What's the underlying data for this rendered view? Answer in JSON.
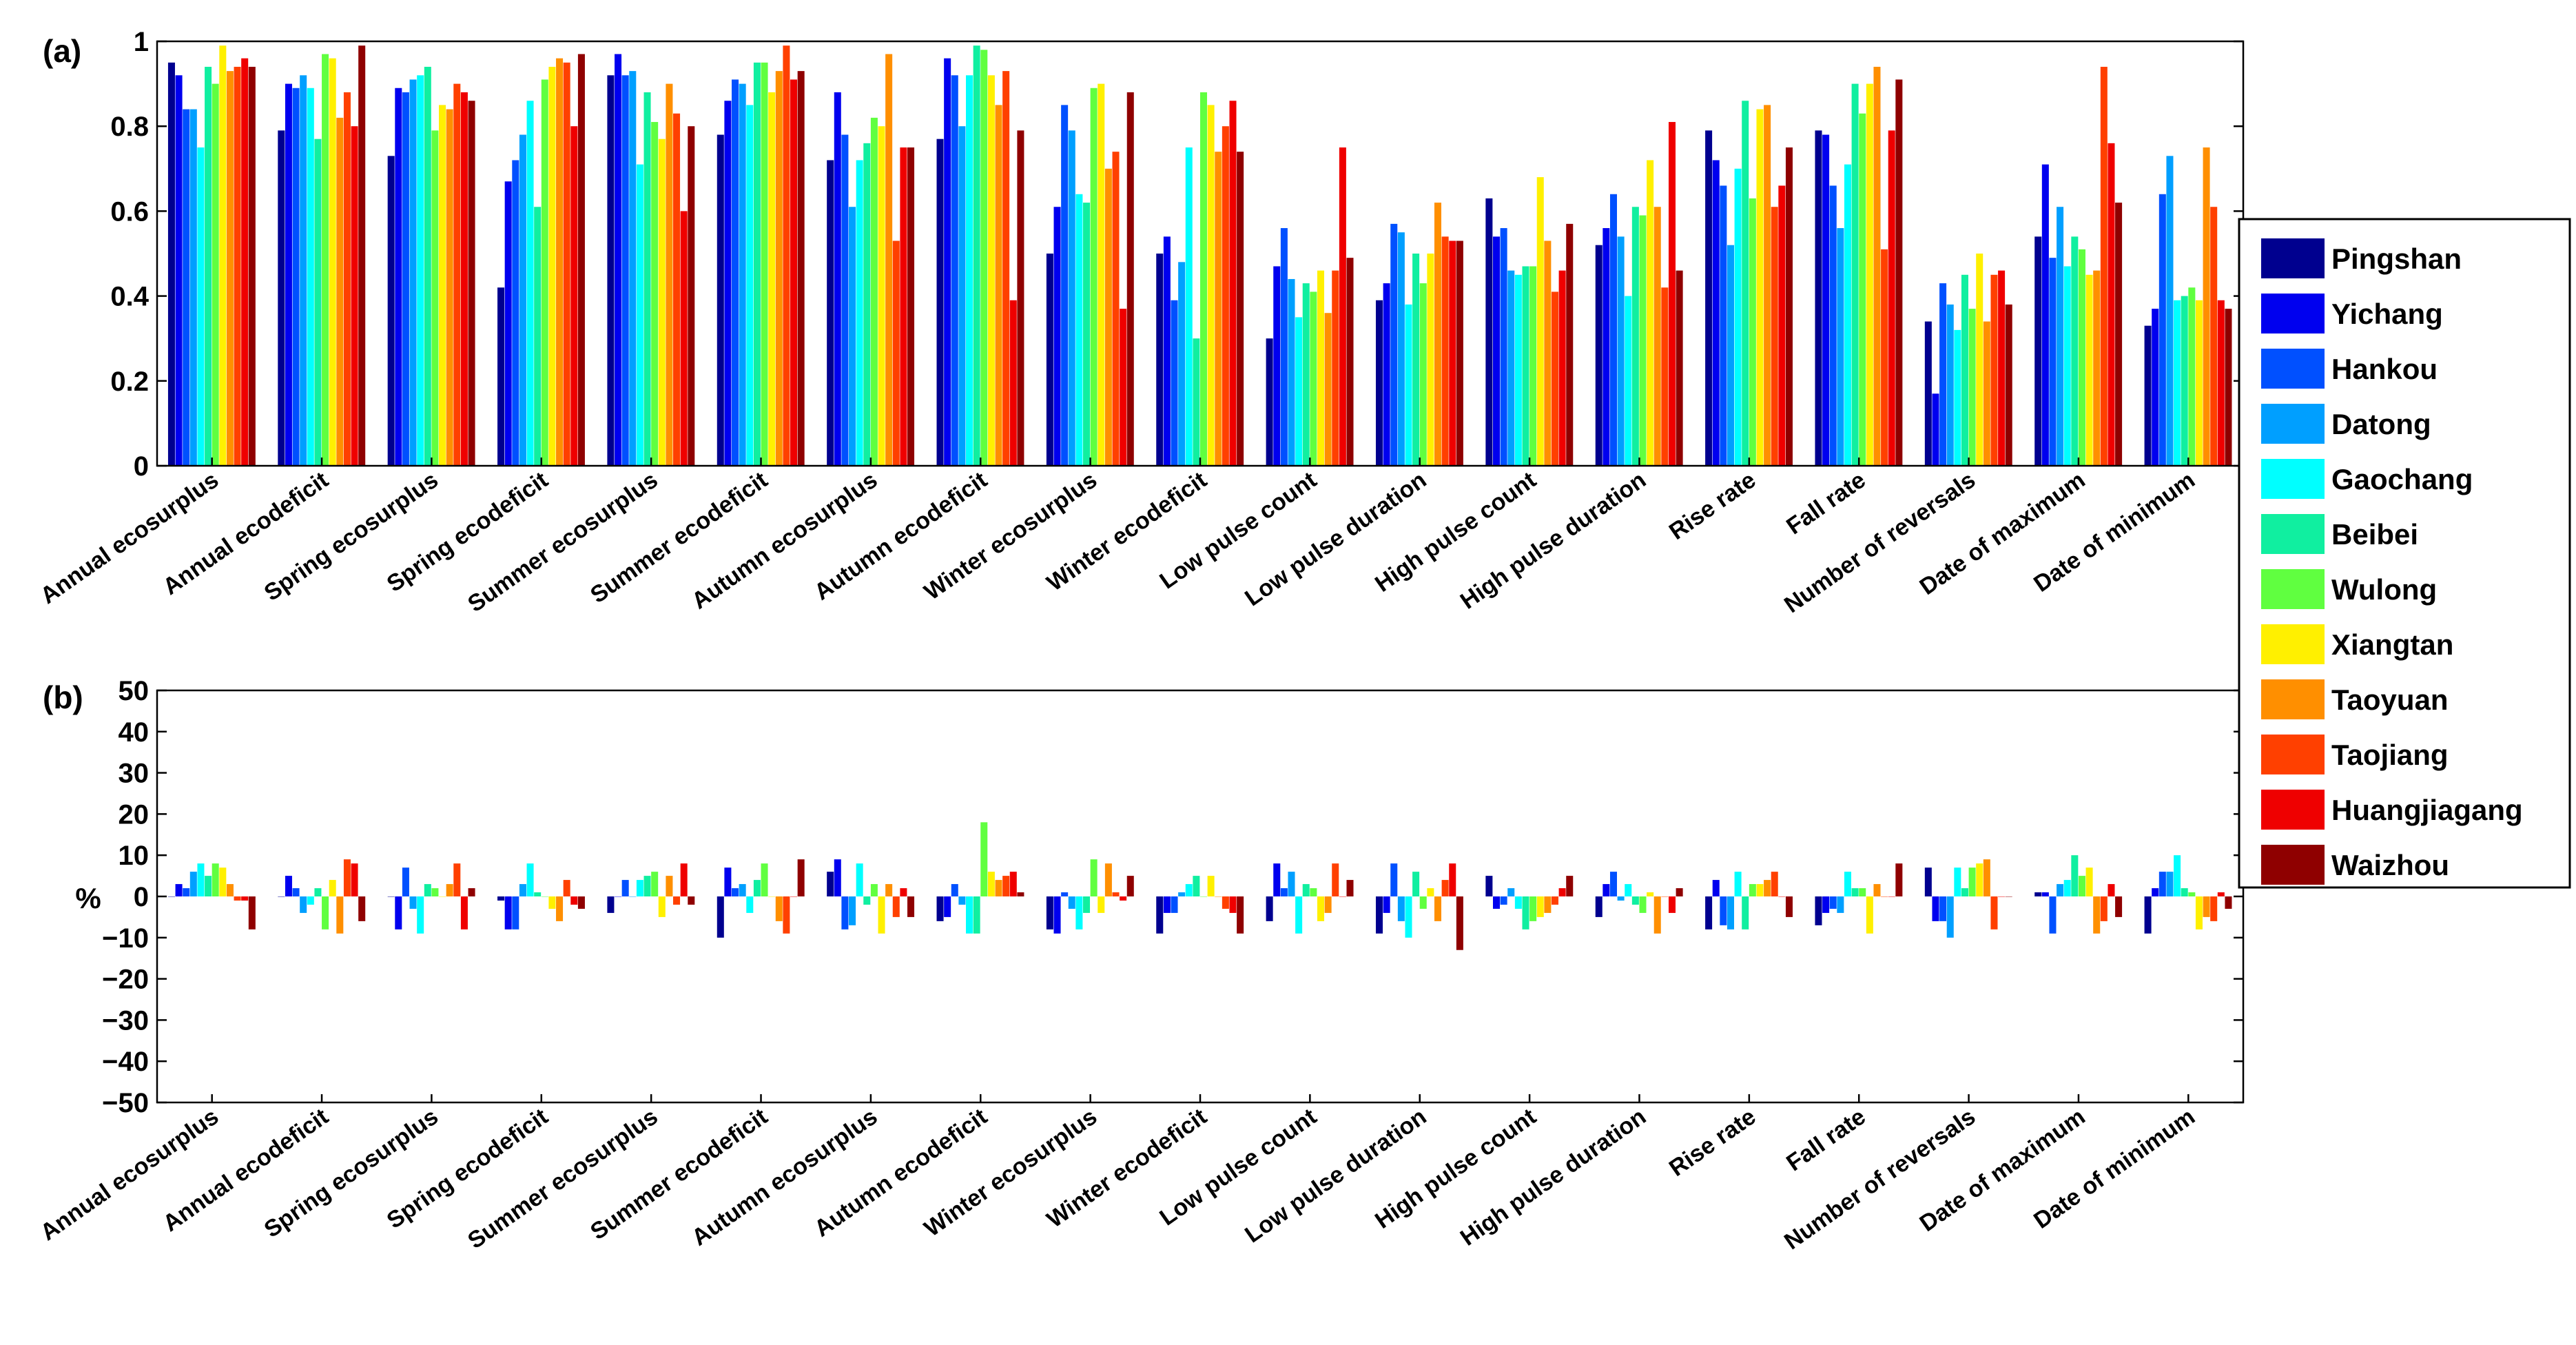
{
  "chart_data": [
    {
      "panel": "(a)",
      "type": "bar",
      "ylabel": "",
      "ylim": [
        0,
        1
      ],
      "yticks": [
        "0",
        "0.2",
        "0.4",
        "0.6",
        "0.8",
        "1"
      ],
      "ytick_values": [
        0,
        0.2,
        0.4,
        0.6,
        0.8,
        1
      ],
      "categories": [
        "Annual ecosurplus",
        "Annual ecodeficit",
        "Spring ecosurplus",
        "Spring ecodeficit",
        "Summer ecosurplus",
        "Summer ecodeficit",
        "Autumn ecosurplus",
        "Autumn ecodeficit",
        "Winter ecosurplus",
        "Winter ecodeficit",
        "Low pulse count",
        "Low pulse duration",
        "High pulse count",
        "High pulse duration",
        "Rise rate",
        "Fall rate",
        "Number of reversals",
        "Date of maximum",
        "Date of minimum"
      ],
      "series": [
        {
          "name": "Pingshan",
          "values": [
            0.95,
            0.79,
            0.73,
            0.42,
            0.92,
            0.78,
            0.72,
            0.77,
            0.5,
            0.5,
            0.3,
            0.39,
            0.63,
            0.52,
            0.79,
            0.79,
            0.34,
            0.54,
            0.33
          ]
        },
        {
          "name": "Yichang",
          "values": [
            0.92,
            0.9,
            0.89,
            0.67,
            0.97,
            0.86,
            0.88,
            0.96,
            0.61,
            0.54,
            0.47,
            0.43,
            0.54,
            0.56,
            0.72,
            0.78,
            0.17,
            0.71,
            0.37
          ]
        },
        {
          "name": "Hankou",
          "values": [
            0.84,
            0.89,
            0.88,
            0.72,
            0.92,
            0.91,
            0.78,
            0.92,
            0.85,
            0.39,
            0.56,
            0.57,
            0.56,
            0.64,
            0.66,
            0.66,
            0.43,
            0.49,
            0.64
          ]
        },
        {
          "name": "Datong",
          "values": [
            0.84,
            0.92,
            0.91,
            0.78,
            0.93,
            0.9,
            0.61,
            0.8,
            0.79,
            0.48,
            0.44,
            0.55,
            0.46,
            0.54,
            0.52,
            0.56,
            0.38,
            0.61,
            0.73
          ]
        },
        {
          "name": "Gaochang",
          "values": [
            0.75,
            0.89,
            0.92,
            0.86,
            0.71,
            0.85,
            0.72,
            0.92,
            0.64,
            0.75,
            0.35,
            0.38,
            0.45,
            0.4,
            0.7,
            0.71,
            0.32,
            0.47,
            0.39
          ]
        },
        {
          "name": "Beibei",
          "values": [
            0.94,
            0.77,
            0.94,
            0.61,
            0.88,
            0.95,
            0.76,
            0.99,
            0.62,
            0.3,
            0.43,
            0.5,
            0.47,
            0.61,
            0.86,
            0.9,
            0.45,
            0.54,
            0.4
          ]
        },
        {
          "name": "Wulong",
          "values": [
            0.9,
            0.97,
            0.79,
            0.91,
            0.81,
            0.95,
            0.82,
            0.98,
            0.89,
            0.88,
            0.41,
            0.43,
            0.47,
            0.59,
            0.63,
            0.83,
            0.37,
            0.51,
            0.42
          ]
        },
        {
          "name": "Xiangtan",
          "values": [
            0.99,
            0.96,
            0.85,
            0.94,
            0.77,
            0.88,
            0.8,
            0.92,
            0.9,
            0.85,
            0.46,
            0.5,
            0.68,
            0.72,
            0.84,
            0.9,
            0.5,
            0.45,
            0.39
          ]
        },
        {
          "name": "Taoyuan",
          "values": [
            0.93,
            0.82,
            0.84,
            0.96,
            0.9,
            0.93,
            0.97,
            0.85,
            0.7,
            0.74,
            0.36,
            0.62,
            0.53,
            0.61,
            0.85,
            0.94,
            0.34,
            0.46,
            0.75
          ]
        },
        {
          "name": "Taojiang",
          "values": [
            0.94,
            0.88,
            0.9,
            0.95,
            0.83,
            0.99,
            0.53,
            0.93,
            0.74,
            0.8,
            0.46,
            0.54,
            0.41,
            0.42,
            0.61,
            0.51,
            0.45,
            0.94,
            0.61
          ]
        },
        {
          "name": "Huangjiagang",
          "values": [
            0.96,
            0.8,
            0.88,
            0.8,
            0.6,
            0.91,
            0.75,
            0.39,
            0.37,
            0.86,
            0.75,
            0.53,
            0.46,
            0.81,
            0.66,
            0.79,
            0.46,
            0.76,
            0.39
          ]
        },
        {
          "name": "Waizhou",
          "values": [
            0.94,
            0.99,
            0.86,
            0.97,
            0.8,
            0.93,
            0.75,
            0.79,
            0.88,
            0.74,
            0.49,
            0.53,
            0.57,
            0.46,
            0.75,
            0.91,
            0.38,
            0.62,
            0.37
          ]
        }
      ]
    },
    {
      "panel": "(b)",
      "type": "bar",
      "ylabel": "%",
      "ylim": [
        -50,
        50
      ],
      "yticks": [
        "−50",
        "−40",
        "−30",
        "−20",
        "−10",
        "0",
        "10",
        "20",
        "30",
        "40",
        "50"
      ],
      "ytick_values": [
        -50,
        -40,
        -30,
        -20,
        -10,
        0,
        10,
        20,
        30,
        40,
        50
      ],
      "categories": [
        "Annual ecosurplus",
        "Annual ecodeficit",
        "Spring ecosurplus",
        "Spring ecodeficit",
        "Summer ecosurplus",
        "Summer ecodeficit",
        "Autumn ecosurplus",
        "Autumn ecodeficit",
        "Winter ecosurplus",
        "Winter ecodeficit",
        "Low pulse count",
        "Low pulse duration",
        "High pulse count",
        "High pulse duration",
        "Rise rate",
        "Fall rate",
        "Number of reversals",
        "Date of maximum",
        "Date of minimum"
      ],
      "series": [
        {
          "name": "Pingshan",
          "values": [
            0,
            0,
            0,
            -1,
            -4,
            -10,
            6,
            -6,
            -8,
            -9,
            -6,
            -9,
            5,
            -5,
            -8,
            -7,
            7,
            1,
            -9
          ]
        },
        {
          "name": "Yichang",
          "values": [
            3,
            5,
            -8,
            -8,
            0,
            7,
            9,
            -5,
            -9,
            -4,
            8,
            -4,
            -3,
            3,
            4,
            -4,
            -6,
            1,
            2
          ]
        },
        {
          "name": "Hankou",
          "values": [
            2,
            2,
            7,
            -8,
            4,
            2,
            -8,
            3,
            1,
            -4,
            2,
            8,
            -2,
            6,
            -7,
            -3,
            -6,
            -9,
            6
          ]
        },
        {
          "name": "Datong",
          "values": [
            6,
            -4,
            -3,
            3,
            0,
            3,
            -7,
            -2,
            -3,
            1,
            6,
            -6,
            2,
            -1,
            -8,
            -4,
            -10,
            3,
            6
          ]
        },
        {
          "name": "Gaochang",
          "values": [
            8,
            -2,
            -9,
            8,
            4,
            -4,
            8,
            -9,
            -8,
            3,
            -9,
            -10,
            -3,
            3,
            6,
            6,
            7,
            4,
            10
          ]
        },
        {
          "name": "Beibei",
          "values": [
            5,
            2,
            3,
            1,
            5,
            4,
            -2,
            -9,
            -4,
            5,
            3,
            6,
            -8,
            -2,
            -8,
            2,
            2,
            10,
            2
          ]
        },
        {
          "name": "Wulong",
          "values": [
            8,
            -8,
            2,
            0,
            6,
            8,
            3,
            18,
            9,
            0,
            2,
            -3,
            -6,
            -4,
            3,
            2,
            7,
            5,
            1
          ]
        },
        {
          "name": "Xiangtan",
          "values": [
            7,
            4,
            0,
            -3,
            -5,
            0,
            -9,
            6,
            -4,
            5,
            -6,
            2,
            -5,
            1,
            3,
            -9,
            8,
            7,
            -8
          ]
        },
        {
          "name": "Taoyuan",
          "values": [
            3,
            -9,
            3,
            -6,
            5,
            -6,
            3,
            4,
            8,
            0,
            -4,
            -6,
            -4,
            -9,
            4,
            3,
            9,
            -9,
            -5
          ]
        },
        {
          "name": "Taojiang",
          "values": [
            -1,
            9,
            8,
            4,
            -2,
            -9,
            -5,
            5,
            1,
            -3,
            8,
            4,
            -2,
            0,
            6,
            0,
            -8,
            -6,
            -6
          ]
        },
        {
          "name": "Huangjiagang",
          "values": [
            -1,
            8,
            -8,
            -2,
            8,
            0,
            2,
            6,
            -1,
            -4,
            0,
            8,
            2,
            -4,
            0,
            0,
            0,
            3,
            1
          ]
        },
        {
          "name": "Waizhou",
          "values": [
            -8,
            -6,
            2,
            -3,
            -2,
            9,
            -5,
            1,
            5,
            -9,
            4,
            -13,
            5,
            2,
            -5,
            8,
            0,
            -5,
            -3
          ]
        }
      ]
    }
  ],
  "legend": {
    "entries": [
      "Pingshan",
      "Yichang",
      "Hankou",
      "Datong",
      "Gaochang",
      "Beibei",
      "Wulong",
      "Xiangtan",
      "Taoyuan",
      "Taojiang",
      "Huangjiagang",
      "Waizhou"
    ],
    "colors": [
      "#00008F",
      "#0000EF",
      "#0050FF",
      "#009FFF",
      "#00FFFF",
      "#10EFA0",
      "#60FF40",
      "#FFF000",
      "#FF8F00",
      "#FF4000",
      "#EF0000",
      "#8F0000"
    ],
    "placement": "right"
  }
}
